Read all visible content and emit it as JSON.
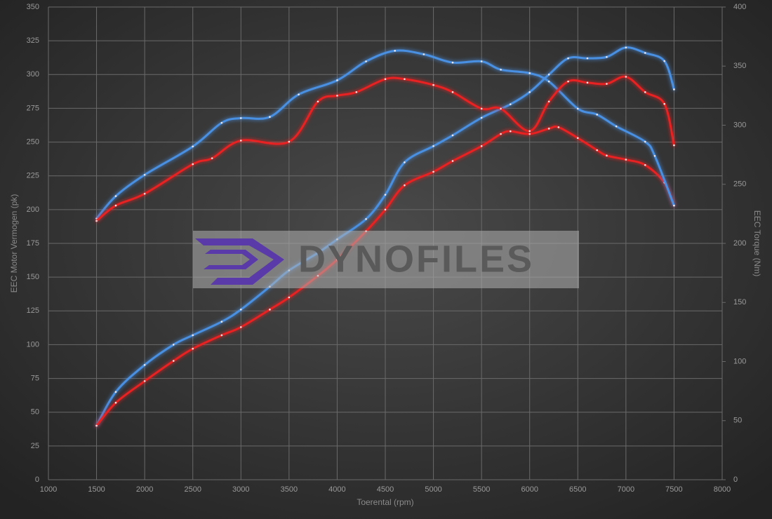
{
  "chart_data": {
    "type": "line",
    "xlabel": "Toerental (rpm)",
    "ylabel": "EEC Motor Vermogen (pk)",
    "y2label": "EEC Torque (Nm)",
    "watermark": "DYNOFILES",
    "xlim": [
      1000,
      8000
    ],
    "xticks": [
      1000,
      1500,
      2000,
      2500,
      3000,
      3500,
      4000,
      4500,
      5000,
      5500,
      6000,
      6500,
      7000,
      7500,
      8000
    ],
    "ylim": [
      0,
      350
    ],
    "yticks": [
      0,
      25,
      50,
      75,
      100,
      125,
      150,
      175,
      200,
      225,
      250,
      275,
      300,
      325,
      350
    ],
    "y2lim": [
      0,
      400
    ],
    "y2ticks": [
      0,
      50,
      100,
      150,
      200,
      250,
      300,
      350,
      400
    ],
    "grid": true,
    "series": [
      {
        "color": "#4a90e2",
        "axis": "y",
        "x": [
          1500,
          1700,
          2000,
          2300,
          2500,
          2800,
          3000,
          3300,
          3500,
          3800,
          4000,
          4300,
          4500,
          4700,
          5000,
          5200,
          5500,
          5800,
          6000,
          6200,
          6400,
          6600,
          6800,
          7000,
          7200,
          7400,
          7500
        ],
        "values": [
          40,
          65,
          85,
          100,
          107,
          117,
          126,
          143,
          155,
          168,
          178,
          193,
          211,
          235,
          247,
          255,
          268,
          278,
          287,
          300,
          312,
          312,
          313,
          320,
          316,
          310,
          289
        ]
      },
      {
        "color": "#e82020",
        "axis": "y",
        "x": [
          1500,
          1700,
          2000,
          2300,
          2500,
          2800,
          3000,
          3300,
          3500,
          3800,
          4000,
          4300,
          4500,
          4700,
          5000,
          5200,
          5500,
          5700,
          5800,
          6000,
          6200,
          6300,
          6500,
          6700,
          6800,
          7000,
          7200,
          7400,
          7500
        ],
        "values": [
          40,
          57,
          73,
          88,
          97,
          107,
          113,
          126,
          135,
          151,
          163,
          184,
          200,
          218,
          228,
          236,
          247,
          256,
          258,
          256,
          260,
          261,
          253,
          244,
          240,
          237,
          233,
          220,
          203
        ]
      },
      {
        "color": "#4a90e2",
        "axis": "y2",
        "x": [
          1500,
          1700,
          2000,
          2500,
          2800,
          3000,
          3300,
          3600,
          4000,
          4300,
          4600,
          4900,
          5200,
          5500,
          5700,
          6000,
          6200,
          6500,
          6700,
          6900,
          7200,
          7300,
          7500
        ],
        "values": [
          221,
          240,
          258,
          282,
          302,
          306,
          307,
          326,
          338,
          354,
          363,
          360,
          353,
          354,
          347,
          344,
          337,
          314,
          309,
          299,
          286,
          274,
          232
        ]
      },
      {
        "color": "#e82020",
        "axis": "y2",
        "x": [
          1500,
          1700,
          2000,
          2500,
          2700,
          3000,
          3500,
          3800,
          4000,
          4200,
          4500,
          4700,
          5000,
          5200,
          5500,
          5700,
          6000,
          6200,
          6400,
          6600,
          6800,
          7000,
          7200,
          7400,
          7500
        ],
        "values": [
          219,
          232,
          242,
          267,
          272,
          287,
          286,
          320,
          325,
          328,
          339,
          339,
          334,
          328,
          314,
          314,
          295,
          320,
          337,
          336,
          335,
          341,
          328,
          318,
          283
        ]
      }
    ]
  }
}
